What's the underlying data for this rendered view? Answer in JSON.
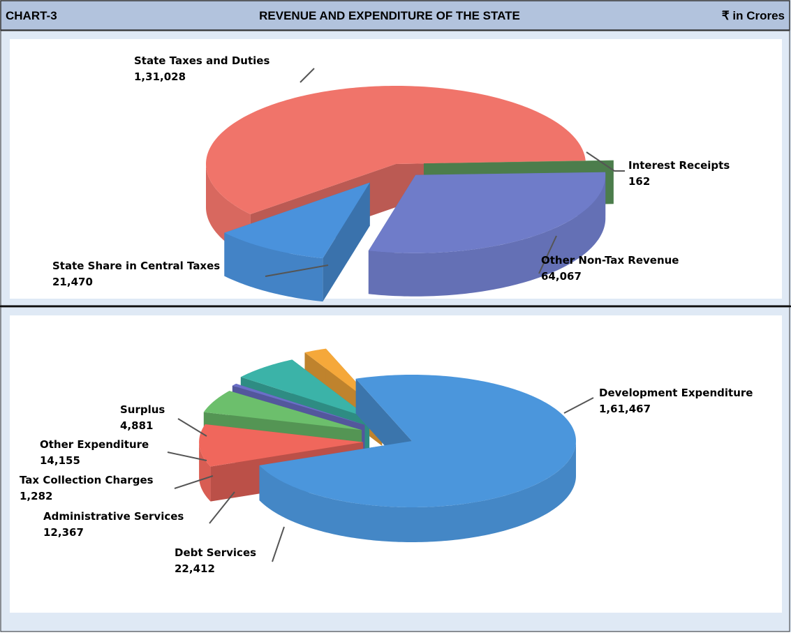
{
  "header": {
    "label": "CHART-3",
    "title": "REVENUE AND EXPENDITURE OF THE STATE",
    "unit": "₹ in Crores"
  },
  "chart_data": [
    {
      "type": "pie3d",
      "categories": [
        "State Taxes and Duties",
        "Interest Receipts",
        "Other Non-Tax Revenue",
        "State Share in Central Taxes"
      ],
      "values": [
        131028,
        162,
        64067,
        21470
      ],
      "value_labels": [
        "1,31,028",
        "162",
        "64,067",
        "21,470"
      ],
      "colors": [
        "#f0746a",
        "#62a062",
        "#6f7cc9",
        "#4a92dc"
      ]
    },
    {
      "type": "pie3d",
      "categories": [
        "Development Expenditure",
        "Debt Services",
        "Administrative Services",
        "Tax Collection Charges",
        "Other Expenditure",
        "Surplus"
      ],
      "values": [
        161467,
        22412,
        12367,
        1282,
        14155,
        4881
      ],
      "value_labels": [
        "1,61,467",
        "22,412",
        "12,367",
        "1,282",
        "14,155",
        "4,881"
      ],
      "colors": [
        "#4b96dc",
        "#f0675c",
        "#6cbf6c",
        "#6b6fc8",
        "#3bb3a8",
        "#f5a83a"
      ]
    }
  ]
}
